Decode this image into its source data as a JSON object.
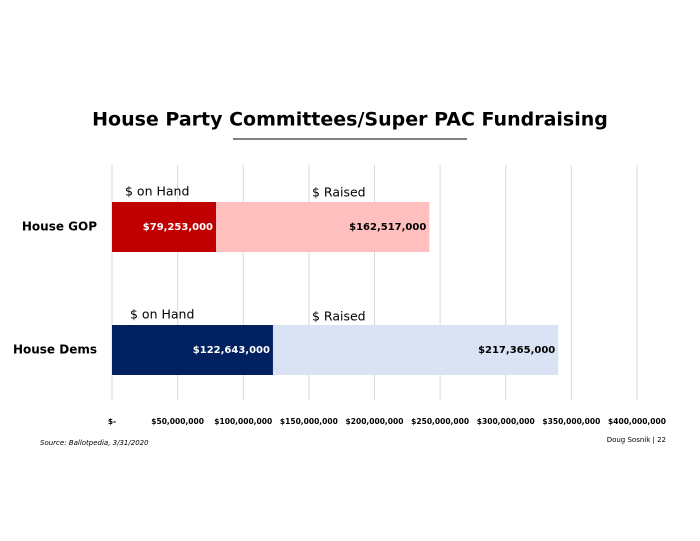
{
  "chart_data": {
    "type": "stacked-barh",
    "title": "House Party Committees/Super PAC Fundraising",
    "categories": [
      "House GOP",
      "House Dems"
    ],
    "series": [
      {
        "name": "$ on Hand",
        "colors": [
          "#c00000",
          "#002060"
        ],
        "values": [
          79253000,
          122643000
        ],
        "value_labels": [
          "$79,253,000",
          "$122,643,000"
        ]
      },
      {
        "name": "$ Raised",
        "colors": [
          "#ffbfbf",
          "#dae3f3"
        ],
        "values": [
          162517000,
          217365000
        ],
        "value_labels": [
          "$162,517,000",
          "$217,365,000"
        ]
      }
    ],
    "xlim": [
      0,
      400000000
    ],
    "xticks": [
      {
        "value": 0,
        "label": "$-"
      },
      {
        "value": 50000000,
        "label": "$50,000,000"
      },
      {
        "value": 100000000,
        "label": "$100,000,000"
      },
      {
        "value": 150000000,
        "label": "$150,000,000"
      },
      {
        "value": 200000000,
        "label": "$200,000,000"
      },
      {
        "value": 250000000,
        "label": "$250,000,000"
      },
      {
        "value": 300000000,
        "label": "$300,000,000"
      },
      {
        "value": 350000000,
        "label": "$350,000,000"
      },
      {
        "value": 400000000,
        "label": "$400,000,000"
      }
    ],
    "grid": true,
    "source": "Source: Ballotpedia, 3/31/2020",
    "footer": "Doug Sosnik | 22"
  }
}
